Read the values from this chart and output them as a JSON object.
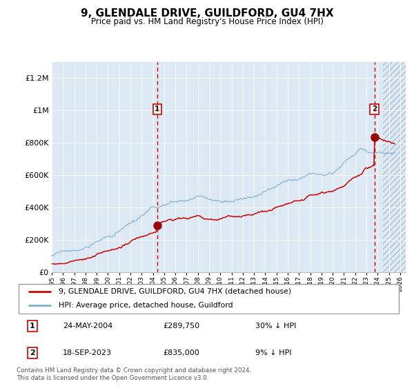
{
  "title": "9, GLENDALE DRIVE, GUILDFORD, GU4 7HX",
  "subtitle": "Price paid vs. HM Land Registry's House Price Index (HPI)",
  "ylim": [
    0,
    1300000
  ],
  "yticks": [
    0,
    200000,
    400000,
    600000,
    800000,
    1000000,
    1200000
  ],
  "ytick_labels": [
    "£0",
    "£200K",
    "£400K",
    "£600K",
    "£800K",
    "£1M",
    "£1.2M"
  ],
  "xlim_start": 1995.0,
  "xlim_end": 2026.5,
  "sale1_date": 2004.38,
  "sale1_price": 289750,
  "sale1_label": "1",
  "sale2_date": 2023.71,
  "sale2_price": 835000,
  "sale2_label": "2",
  "bg_color": "#dce9f5",
  "hatch_color": "#b0bdd0",
  "grid_color": "#ffffff",
  "red_line_color": "#cc0000",
  "blue_line_color": "#7ab0d4",
  "sale_marker_color": "#990000",
  "legend_label_red": "9, GLENDALE DRIVE, GUILDFORD, GU4 7HX (detached house)",
  "legend_label_blue": "HPI: Average price, detached house, Guildford",
  "table_row1": [
    "1",
    "24-MAY-2004",
    "£289,750",
    "30% ↓ HPI"
  ],
  "table_row2": [
    "2",
    "18-SEP-2023",
    "£835,000",
    "9% ↓ HPI"
  ],
  "footer": "Contains HM Land Registry data © Crown copyright and database right 2024.\nThis data is licensed under the Open Government Licence v3.0.",
  "hatch_start": 2024.5
}
